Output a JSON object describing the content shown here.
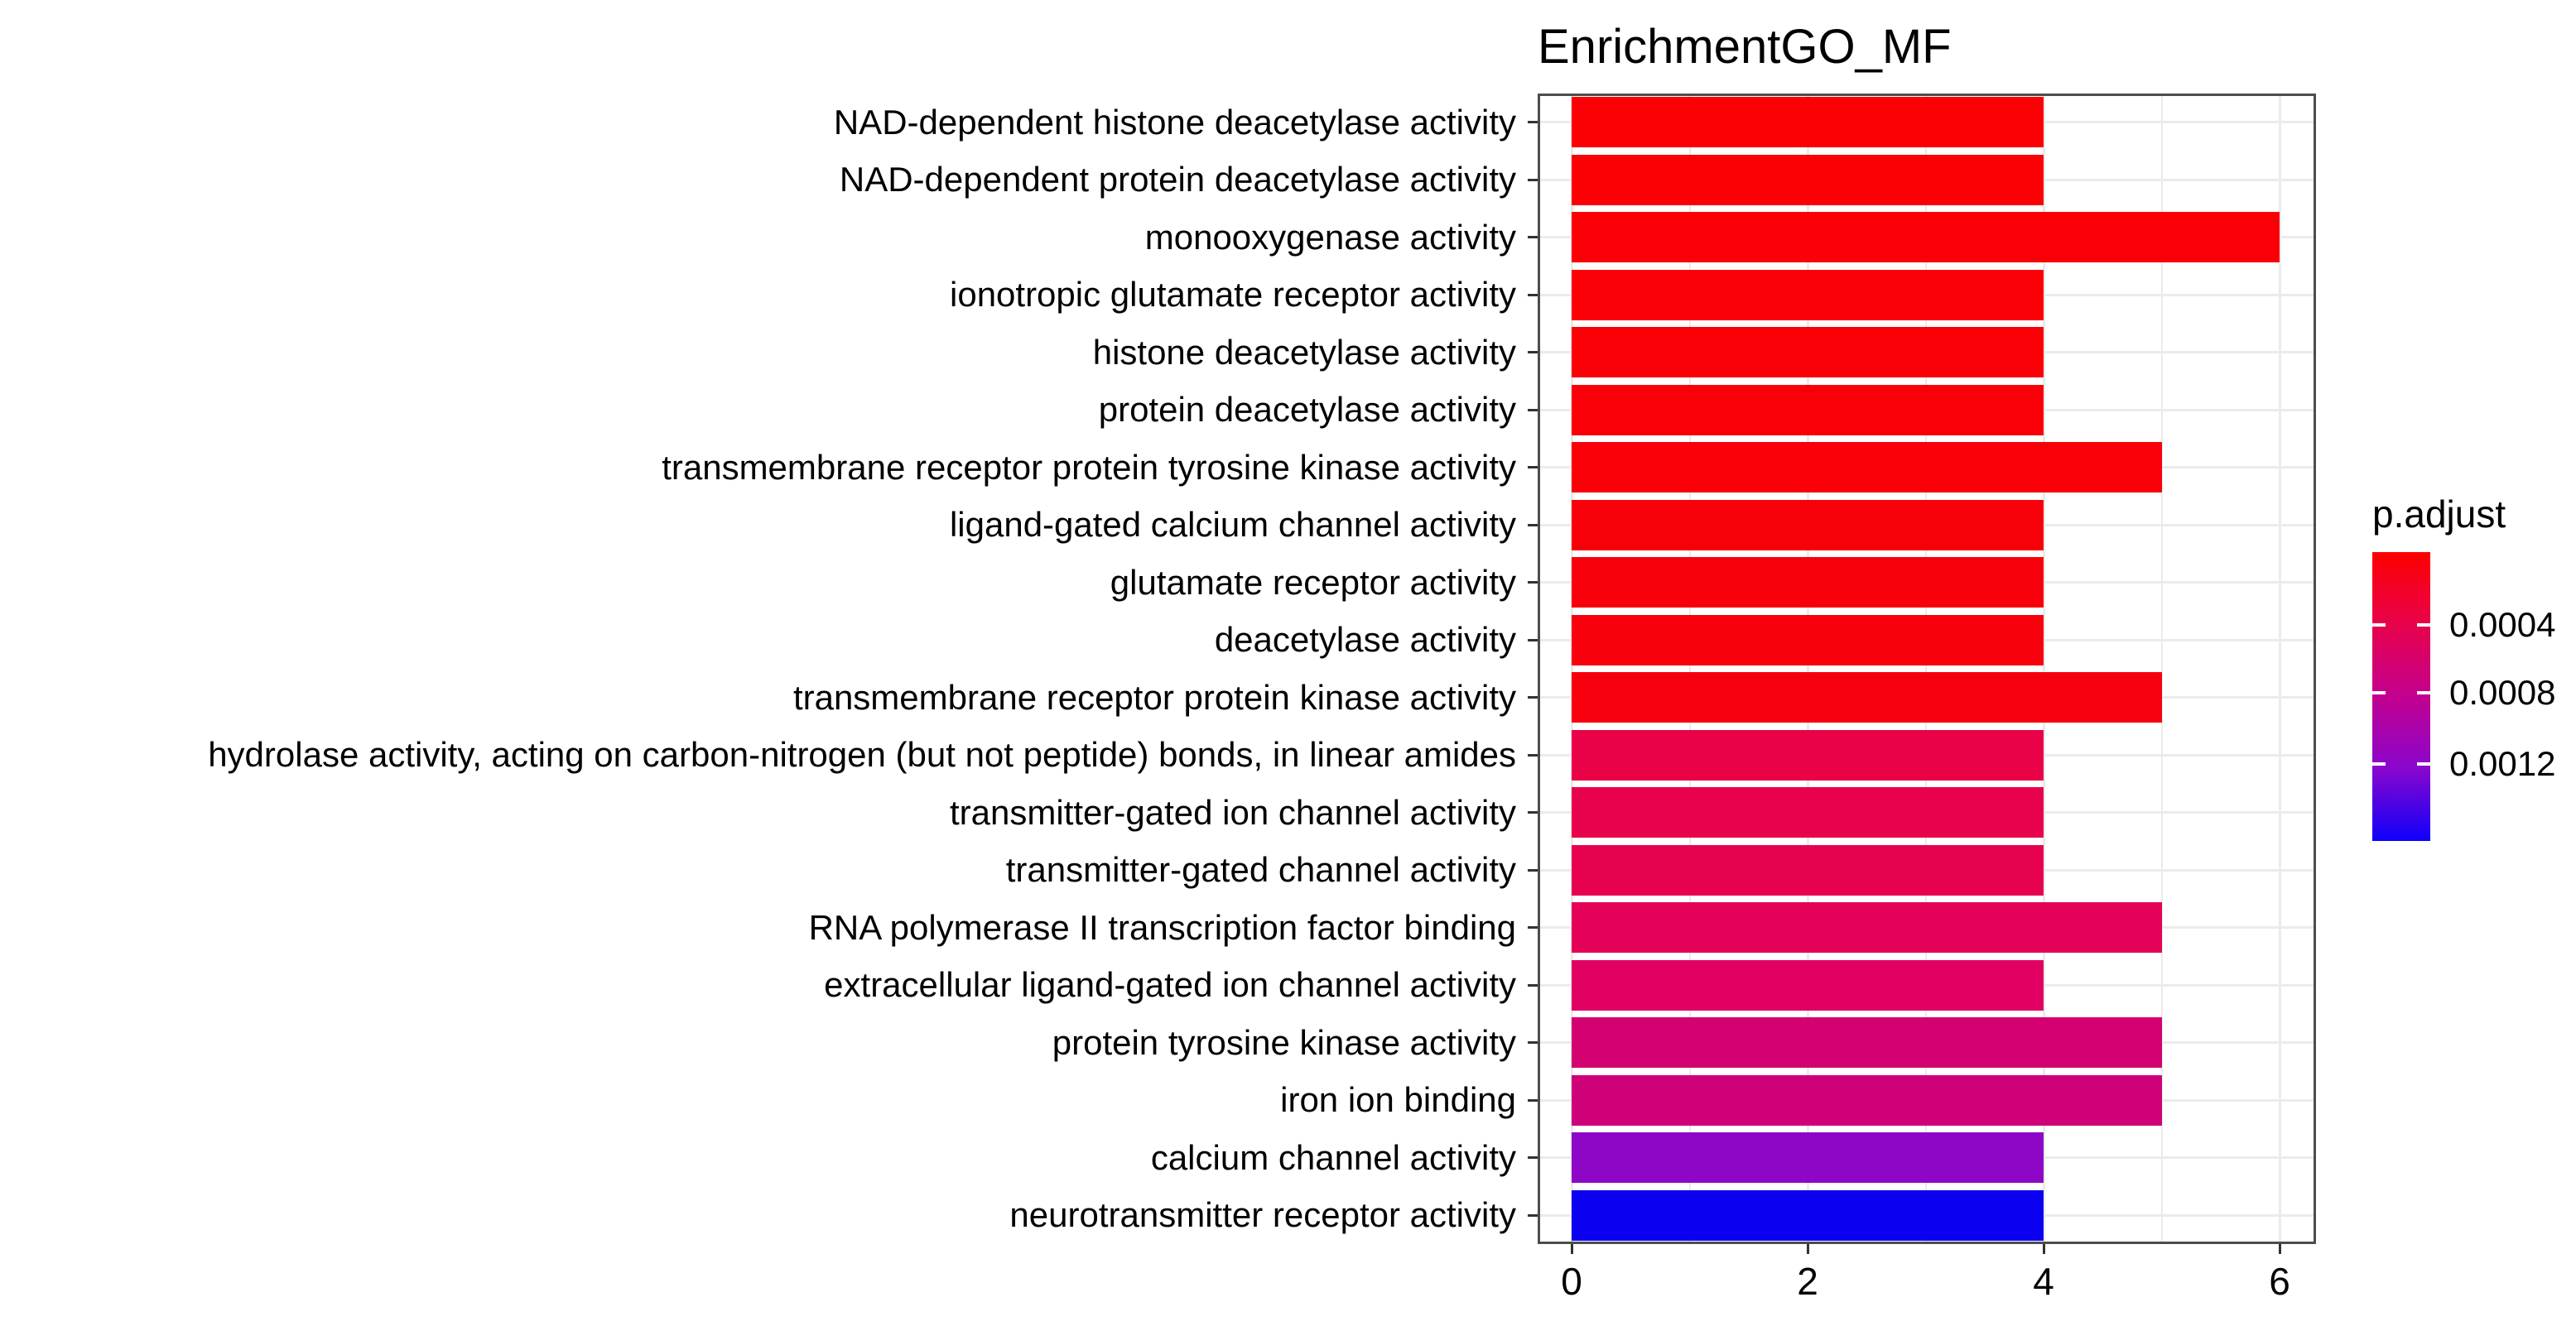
{
  "title": "EnrichmentGO_MF",
  "legend": {
    "title": "p.adjust",
    "ticks": [
      {
        "label": "0.0004",
        "pos": 0.252
      },
      {
        "label": "0.0008",
        "pos": 0.488
      },
      {
        "label": "0.0012",
        "pos": 0.734
      }
    ],
    "gradient": [
      "#FE0000",
      "#E8024B",
      "#C3008F",
      "#8A06CE",
      "#0E00FA"
    ]
  },
  "chart_data": {
    "type": "bar",
    "orientation": "horizontal",
    "title": "EnrichmentGO_MF",
    "xlabel": "",
    "ylabel": "",
    "xlim": [
      0,
      6.35
    ],
    "x_ticks": [
      0,
      2,
      4,
      6
    ],
    "grid": true,
    "legend_position": "right",
    "color_scale": {
      "name": "p.adjust",
      "low_color": "#FF0000",
      "high_color": "#0000FF",
      "tick_labels": [
        "0.0004",
        "0.0008",
        "0.0012"
      ]
    },
    "categories": [
      "NAD-dependent histone deacetylase activity",
      "NAD-dependent protein deacetylase activity",
      "monooxygenase activity",
      "ionotropic glutamate receptor activity",
      "histone deacetylase activity",
      "protein deacetylase activity",
      "transmembrane receptor protein tyrosine kinase activity",
      "ligand-gated calcium channel activity",
      "glutamate receptor activity",
      "deacetylase activity",
      "transmembrane receptor protein kinase activity",
      "hydrolase activity, acting on carbon-nitrogen (but not peptide) bonds, in linear amides",
      "transmitter-gated ion channel activity",
      "transmitter-gated channel activity",
      "RNA polymerase II transcription factor binding",
      "extracellular ligand-gated ion channel activity",
      "protein tyrosine kinase activity",
      "iron ion binding",
      "calcium channel activity",
      "neurotransmitter receptor activity"
    ],
    "values": [
      4,
      4,
      6,
      4,
      4,
      4,
      5,
      4,
      4,
      4,
      5,
      4,
      4,
      4,
      5,
      4,
      5,
      5,
      4,
      4
    ],
    "bar_colors": [
      "#FB0005",
      "#FB0005",
      "#FA0006",
      "#FA0007",
      "#FA0007",
      "#F90008",
      "#F90009",
      "#F8000A",
      "#F8000B",
      "#F8000C",
      "#F7000D",
      "#E90247",
      "#E8024B",
      "#E7024F",
      "#E40158",
      "#E10162",
      "#D40170",
      "#CE0179",
      "#8E07C6",
      "#0B00F0"
    ]
  }
}
